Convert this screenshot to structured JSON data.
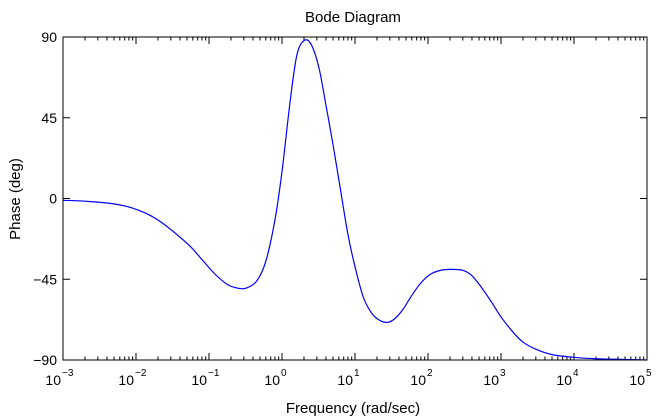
{
  "chart_data": {
    "type": "line",
    "title": "Bode Diagram",
    "xlabel": "Frequency  (rad/sec)",
    "ylabel": "Phase (deg)",
    "xscale": "log",
    "xlim": [
      0.001,
      100000
    ],
    "ylim": [
      -90,
      90
    ],
    "x_ticks": [
      {
        "value": 0.001,
        "base": "10",
        "exp": "−3"
      },
      {
        "value": 0.01,
        "base": "10",
        "exp": "−2"
      },
      {
        "value": 0.1,
        "base": "10",
        "exp": "−1"
      },
      {
        "value": 1,
        "base": "10",
        "exp": "0"
      },
      {
        "value": 10,
        "base": "10",
        "exp": "1"
      },
      {
        "value": 100,
        "base": "10",
        "exp": "2"
      },
      {
        "value": 1000,
        "base": "10",
        "exp": "3"
      },
      {
        "value": 10000,
        "base": "10",
        "exp": "4"
      },
      {
        "value": 100000,
        "base": "10",
        "exp": "5"
      }
    ],
    "y_ticks": [
      {
        "value": 90,
        "label": "90"
      },
      {
        "value": 45,
        "label": "45"
      },
      {
        "value": 0,
        "label": "0"
      },
      {
        "value": -45,
        "label": "−45"
      },
      {
        "value": -90,
        "label": "−90"
      }
    ],
    "grid": false,
    "colors": {
      "series": "#0000ff",
      "axes": "#000000"
    },
    "series": [
      {
        "x": [
          0.001,
          0.002,
          0.005,
          0.01,
          0.02,
          0.05,
          0.08,
          0.12,
          0.18,
          0.25,
          0.32,
          0.45,
          0.6,
          0.8,
          1.0,
          1.3,
          1.6,
          2.0,
          2.5,
          3.2,
          4.0,
          5.0,
          6.5,
          8.0,
          10,
          13,
          17,
          22,
          28,
          35,
          45,
          60,
          80,
          110,
          150,
          200,
          300,
          400,
          550,
          750,
          1000,
          1500,
          2000,
          3000,
          5000,
          10000,
          20000,
          50000,
          100000
        ],
        "y": [
          -1,
          -1.5,
          -3,
          -6,
          -12,
          -25,
          -34,
          -42,
          -48,
          -50,
          -50,
          -46,
          -35,
          -12,
          15,
          55,
          80,
          88,
          86,
          73,
          52,
          30,
          2,
          -20,
          -38,
          -55,
          -64,
          -68,
          -69,
          -67,
          -62,
          -54,
          -47,
          -42,
          -40,
          -39.5,
          -40,
          -43,
          -50,
          -58,
          -66,
          -75,
          -80,
          -84,
          -87,
          -88.5,
          -89.3,
          -89.7,
          -90
        ]
      }
    ]
  }
}
